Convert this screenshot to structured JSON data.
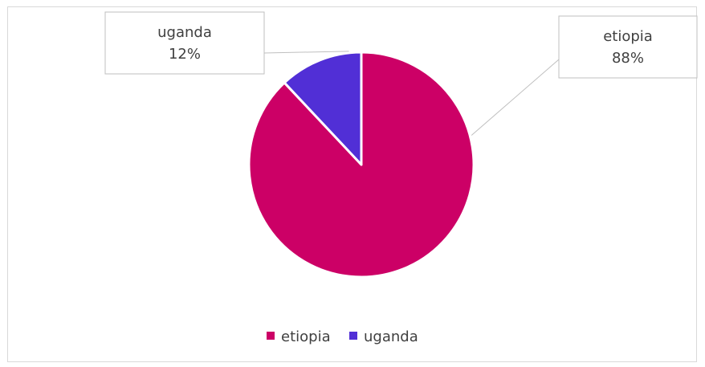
{
  "chart_data": {
    "type": "pie",
    "title": "",
    "series": [
      {
        "values": [
          88,
          12
        ]
      }
    ],
    "categories": [
      "etiopia",
      "uganda"
    ],
    "values": [
      88,
      12
    ],
    "data_labels": [
      {
        "category": "etiopia",
        "percent_text": "88%"
      },
      {
        "category": "uganda",
        "percent_text": "12%"
      }
    ],
    "legend": {
      "position": "bottom",
      "items": [
        {
          "label": "etiopia",
          "color": "#cc0066"
        },
        {
          "label": "uganda",
          "color": "#512fd6"
        }
      ]
    },
    "colors": {
      "etiopia": "#cc0066",
      "uganda": "#512fd6",
      "slice_border": "#ffffff",
      "label_border": "#bfbfbf",
      "text": "#404040"
    }
  }
}
